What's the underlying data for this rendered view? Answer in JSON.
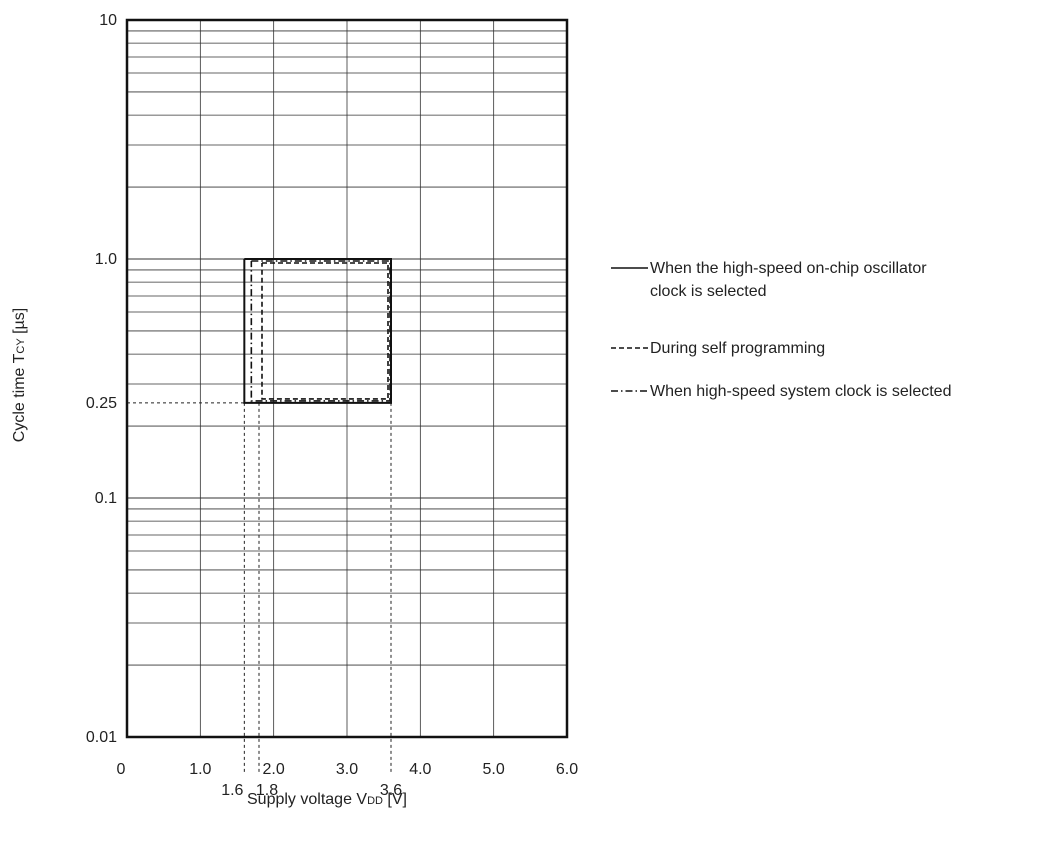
{
  "chart_data": {
    "type": "line",
    "xlabel": {
      "text": "Supply voltage V",
      "sub": "DD",
      "unit": " [V]"
    },
    "ylabel": {
      "text": "Cycle time T",
      "sub": "CY",
      "unit": " [µs]"
    },
    "xlim": [
      0,
      6
    ],
    "ylim": [
      0.01,
      10
    ],
    "yscale": "log",
    "grid": true,
    "legend_position": "right",
    "x_ticks": [
      "0",
      "1.0",
      "2.0",
      "3.0",
      "4.0",
      "5.0",
      "6.0"
    ],
    "x_ticks_extra": [
      "1.6",
      "1.8",
      "3.6"
    ],
    "y_ticks": [
      "10",
      "1.0",
      "0.25",
      "0.1",
      "0.01"
    ],
    "series": [
      {
        "name": "When the high-speed on-chip oscillator clock is selected",
        "name_lines": [
          "When the high-speed on-chip oscillator",
          "clock is selected"
        ],
        "style": "solid",
        "x": [
          1.6,
          3.6,
          3.6,
          1.6,
          1.6
        ],
        "y": [
          1.0,
          1.0,
          0.25,
          0.25,
          1.0
        ]
      },
      {
        "name": "During self programming",
        "name_lines": [
          "During self programming"
        ],
        "style": "dashed",
        "x": [
          1.8,
          3.6,
          3.6,
          1.8,
          1.8
        ],
        "y": [
          1.0,
          1.0,
          0.25,
          0.25,
          1.0
        ]
      },
      {
        "name": "When high-speed system clock is selected",
        "name_lines": [
          "When high-speed system clock is selected"
        ],
        "style": "dashdot",
        "x": [
          1.6,
          3.6,
          3.6,
          1.6,
          1.6
        ],
        "y": [
          1.0,
          1.0,
          0.25,
          0.25,
          1.0
        ]
      }
    ],
    "reference_lines": [
      {
        "axis": "y",
        "value": 0.25
      },
      {
        "axis": "x",
        "value": 1.6
      },
      {
        "axis": "x",
        "value": 1.8
      },
      {
        "axis": "x",
        "value": 3.6
      }
    ]
  }
}
